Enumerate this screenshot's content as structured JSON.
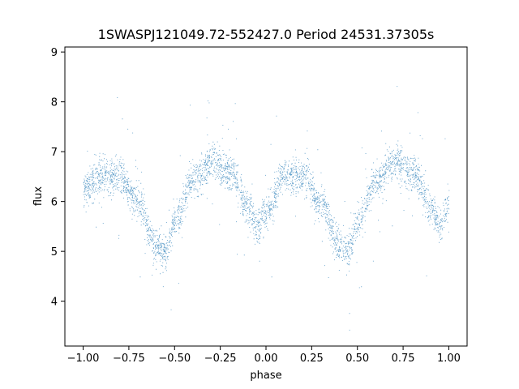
{
  "chart_data": {
    "type": "scatter",
    "title": "1SWASPJ121049.72-552427.0 Period 24531.37305s",
    "xlabel": "phase",
    "ylabel": "flux",
    "xlim": [
      -1.1,
      1.1
    ],
    "ylim": [
      3.1,
      9.1
    ],
    "xticks": [
      -1.0,
      -0.75,
      -0.5,
      -0.25,
      0.0,
      0.25,
      0.5,
      0.75,
      1.0
    ],
    "xtick_labels": [
      "−1.00",
      "−0.75",
      "−0.50",
      "−0.25",
      "0.00",
      "0.25",
      "0.50",
      "0.75",
      "1.00"
    ],
    "yticks": [
      4,
      5,
      6,
      7,
      8,
      9
    ],
    "ytick_labels": [
      "4",
      "5",
      "6",
      "7",
      "8",
      "9"
    ],
    "grid": false,
    "marker_color": "#1f77b4",
    "series": [
      {
        "light_curve_shape": {
          "phase": [
            -1.0,
            -0.9,
            -0.8,
            -0.7,
            -0.6,
            -0.55,
            -0.5,
            -0.4,
            -0.3,
            -0.2,
            -0.1,
            -0.05,
            0.0,
            0.1,
            0.2,
            0.3,
            0.4,
            0.45,
            0.5,
            0.6,
            0.7,
            0.8,
            0.9,
            0.95,
            1.0
          ],
          "flux": [
            6.25,
            6.5,
            6.5,
            6.0,
            5.1,
            5.0,
            5.6,
            6.4,
            6.8,
            6.6,
            5.9,
            5.5,
            5.8,
            6.5,
            6.5,
            6.0,
            5.1,
            5.0,
            5.6,
            6.4,
            6.8,
            6.6,
            5.9,
            5.5,
            6.0
          ]
        }
      }
    ]
  }
}
